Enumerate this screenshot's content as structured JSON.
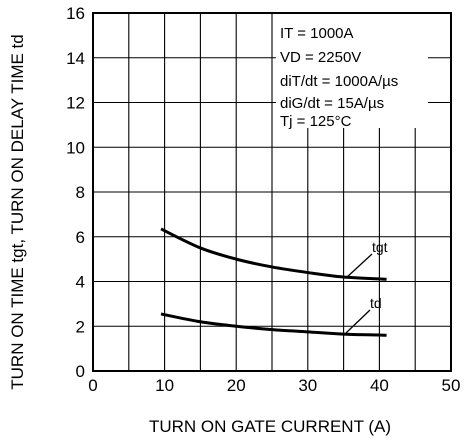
{
  "chart_data": {
    "type": "line",
    "xlabel": "TURN ON GATE CURRENT (A)",
    "ylabel": "TURN ON TIME tgt, TURN ON DELAY TIME td",
    "xlim": [
      0,
      50
    ],
    "ylim": [
      0,
      16
    ],
    "x_ticks": [
      0,
      10,
      20,
      30,
      40,
      50
    ],
    "y_ticks": [
      0,
      2,
      4,
      6,
      8,
      10,
      12,
      14,
      16
    ],
    "grid": true,
    "conditions": [
      "IT = 1000A",
      "VD = 2250V",
      "diT/dt = 1000A/µs",
      "diG/dt = 15A/µs",
      "Tj = 125°C"
    ],
    "series": [
      {
        "name": "tgt",
        "x": [
          9.5,
          15,
          20,
          25,
          30,
          35,
          41
        ],
        "y": [
          6.35,
          5.5,
          5.0,
          4.65,
          4.4,
          4.2,
          4.1
        ]
      },
      {
        "name": "td",
        "x": [
          9.5,
          15,
          20,
          25,
          30,
          35,
          41
        ],
        "y": [
          2.55,
          2.2,
          2.0,
          1.85,
          1.75,
          1.65,
          1.6
        ]
      }
    ]
  }
}
